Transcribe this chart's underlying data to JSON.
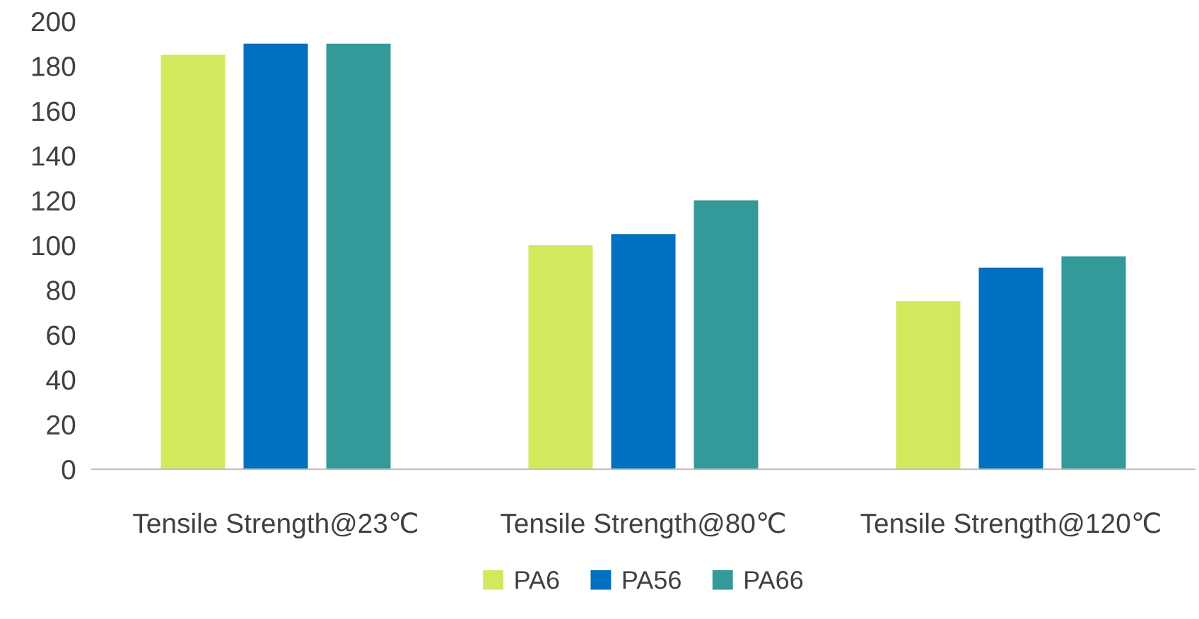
{
  "chart_data": {
    "type": "bar",
    "categories": [
      "Tensile Strength@23℃",
      "Tensile Strength@80℃",
      "Tensile Strength@120℃"
    ],
    "series": [
      {
        "name": "PA6",
        "color": "#d4e85e",
        "values": [
          185,
          100,
          75
        ]
      },
      {
        "name": "PA56",
        "color": "#0070c0",
        "values": [
          190,
          105,
          90
        ]
      },
      {
        "name": "PA66",
        "color": "#339999",
        "values": [
          190,
          120,
          95
        ]
      }
    ],
    "ylim": [
      0,
      200
    ],
    "yticks": [
      0,
      20,
      40,
      60,
      80,
      100,
      120,
      140,
      160,
      180,
      200
    ],
    "grid": false,
    "legend": "bottom"
  }
}
